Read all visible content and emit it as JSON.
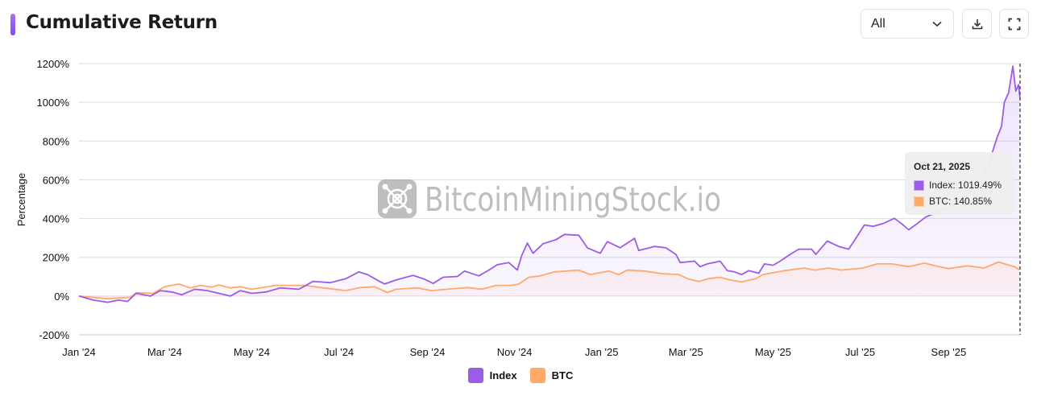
{
  "header": {
    "title": "Cumulative Return"
  },
  "controls": {
    "range_select": "All",
    "download_icon": "download-icon",
    "fullscreen_icon": "fullscreen-icon"
  },
  "watermark": {
    "text": "BitcoinMiningStock.io"
  },
  "tooltip": {
    "date": "Oct 21, 2025",
    "index_text": "Index: 1019.49%",
    "btc_text": "BTC: 140.85%"
  },
  "colors": {
    "index": "#9b5de5",
    "btc": "#ffa96b",
    "accent": "#8b5cf6"
  },
  "chart_data": {
    "type": "line",
    "title": "Cumulative Return",
    "xlabel": "",
    "ylabel": "Percentage",
    "x_unit": "days since Jan 1, 2024",
    "xlim": [
      0,
      659
    ],
    "ylim": [
      -200,
      1200
    ],
    "yticks": [
      -200,
      0,
      200,
      400,
      600,
      800,
      1000,
      1200
    ],
    "ytick_labels": [
      "-200%",
      "0%",
      "200%",
      "400%",
      "600%",
      "800%",
      "1000%",
      "1200%"
    ],
    "xticks": [
      0,
      60,
      121,
      182,
      244,
      305,
      366,
      425,
      486,
      547,
      609
    ],
    "xtick_labels": [
      "Jan '24",
      "Mar '24",
      "May '24",
      "Jul '24",
      "Sep '24",
      "Nov '24",
      "Jan '25",
      "Mar '25",
      "May '25",
      "Jul '25",
      "Sep '25"
    ],
    "grid": true,
    "legend": "bottom-center",
    "series": [
      {
        "name": "Index",
        "x": [
          0,
          10,
          20,
          28,
          34,
          40,
          50,
          57,
          65,
          72,
          81,
          90,
          98,
          106,
          113,
          121,
          131,
          141,
          154,
          164,
          176,
          187,
          196,
          202,
          207,
          214,
          222,
          234,
          242,
          248,
          255,
          265,
          270,
          280,
          287,
          293,
          301,
          307,
          310,
          314,
          318,
          325,
          334,
          340,
          350,
          356,
          365,
          370,
          379,
          389,
          392,
          403,
          411,
          418,
          421,
          431,
          435,
          440,
          449,
          454,
          459,
          464,
          469,
          476,
          480,
          486,
          491,
          498,
          504,
          513,
          516,
          524,
          532,
          539,
          544,
          550,
          556,
          563,
          571,
          576,
          581,
          587,
          593,
          600,
          615,
          628,
          636,
          640,
          643,
          646,
          648,
          651,
          654,
          656,
          658,
          659
        ],
        "y": [
          0,
          -21,
          -32,
          -21,
          -28,
          14,
          0,
          28,
          21,
          7,
          35,
          28,
          14,
          0,
          28,
          14,
          21,
          42,
          35,
          76,
          69,
          90,
          125,
          111,
          90,
          62,
          83,
          107,
          87,
          65,
          97,
          101,
          129,
          104,
          134,
          162,
          173,
          134,
          208,
          273,
          221,
          270,
          291,
          318,
          314,
          249,
          221,
          281,
          249,
          298,
          235,
          256,
          249,
          215,
          173,
          180,
          152,
          166,
          180,
          131,
          125,
          111,
          131,
          118,
          166,
          159,
          180,
          215,
          242,
          242,
          215,
          284,
          256,
          242,
          298,
          367,
          360,
          374,
          401,
          374,
          342,
          374,
          408,
          430,
          480,
          560,
          660,
          751,
          820,
          876,
          1000,
          1050,
          1187,
          1058,
          1091,
          1019.49
        ]
      },
      {
        "name": "BTC",
        "x": [
          0,
          20,
          36,
          40,
          52,
          60,
          70,
          78,
          85,
          93,
          98,
          106,
          113,
          121,
          138,
          158,
          171,
          187,
          197,
          207,
          216,
          222,
          237,
          247,
          260,
          272,
          282,
          292,
          303,
          308,
          315,
          323,
          333,
          350,
          358,
          371,
          378,
          384,
          396,
          409,
          420,
          426,
          434,
          441,
          449,
          456,
          464,
          474,
          479,
          494,
          508,
          515,
          525,
          534,
          549,
          559,
          569,
          581,
          592,
          602,
          609,
          622,
          634,
          644,
          650,
          655,
          658,
          659
        ],
        "y": [
          0,
          -14,
          -7,
          17,
          14,
          48,
          62,
          42,
          55,
          46,
          57,
          42,
          48,
          35,
          55,
          55,
          42,
          28,
          44,
          48,
          18,
          35,
          42,
          28,
          37,
          44,
          35,
          55,
          55,
          62,
          97,
          104,
          125,
          134,
          111,
          129,
          111,
          134,
          129,
          115,
          111,
          90,
          76,
          90,
          97,
          83,
          73,
          90,
          111,
          131,
          145,
          134,
          145,
          134,
          145,
          166,
          166,
          152,
          170,
          152,
          142,
          156,
          145,
          176,
          162,
          152,
          138,
          140.85
        ]
      }
    ]
  }
}
